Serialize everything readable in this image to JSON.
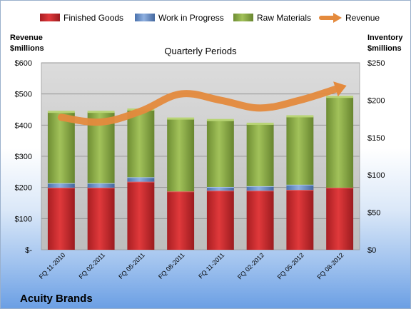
{
  "chart_data": {
    "type": "bar",
    "title": "Quarterly Periods",
    "company": "Acuity Brands",
    "categories": [
      "FQ 11-2010",
      "FQ 02-2011",
      "FQ 05-2011",
      "FQ 08-2011",
      "FQ 11-2011",
      "FQ 02-2012",
      "FQ 05-2012",
      "FQ 08-2012"
    ],
    "left_axis": {
      "label_line1": "Revenue",
      "label_line2": "$millions",
      "ylim": [
        0,
        600
      ],
      "ticks": [
        "$-",
        "$100",
        "$200",
        "$300",
        "$400",
        "$500",
        "$600"
      ]
    },
    "right_axis": {
      "label_line1": "Inventory",
      "label_line2": "$millions",
      "ylim": [
        0,
        250
      ],
      "ticks": [
        "$0",
        "$50",
        "$100",
        "$150",
        "$200",
        "$250"
      ]
    },
    "grid": true,
    "legend_placement": "top",
    "series": [
      {
        "name": "Finished Goods",
        "axis": "right",
        "color": "#c0292b",
        "values": [
          83,
          83,
          91,
          78,
          79,
          79,
          80,
          83
        ]
      },
      {
        "name": "Work in Progress",
        "axis": "right",
        "color": "#5b85c4",
        "values": [
          6,
          6,
          6,
          0,
          5,
          6,
          7,
          0
        ]
      },
      {
        "name": "Raw Materials",
        "axis": "right",
        "color": "#8fad48",
        "values": [
          95,
          95,
          90,
          97,
          89,
          83,
          91,
          121
        ]
      },
      {
        "name": "Revenue",
        "axis": "left",
        "type": "line",
        "color": "#e48a3d",
        "values": [
          425,
          410,
          445,
          500,
          480,
          455,
          480,
          520
        ]
      }
    ]
  }
}
